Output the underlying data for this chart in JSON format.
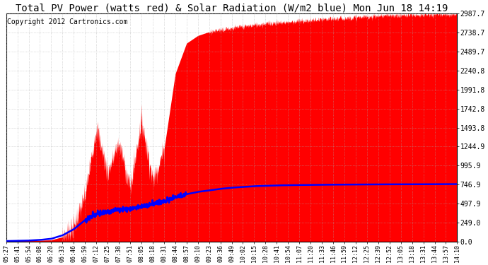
{
  "title": "Total PV Power (watts red) & Solar Radiation (W/m2 blue) Mon Jun 18 14:19",
  "copyright": "Copyright 2012 Cartronics.com",
  "ylim": [
    0.0,
    2987.7
  ],
  "yticks": [
    0.0,
    249.0,
    497.9,
    746.9,
    995.9,
    1244.9,
    1493.8,
    1742.8,
    1991.8,
    2240.8,
    2489.7,
    2738.7,
    2987.7
  ],
  "xtick_labels": [
    "05:27",
    "05:41",
    "05:54",
    "06:08",
    "06:20",
    "06:33",
    "06:46",
    "06:59",
    "07:12",
    "07:25",
    "07:38",
    "07:51",
    "08:05",
    "08:18",
    "08:31",
    "08:44",
    "08:57",
    "09:10",
    "09:23",
    "09:36",
    "09:49",
    "10:02",
    "10:15",
    "10:28",
    "10:41",
    "10:54",
    "11:07",
    "11:20",
    "11:33",
    "11:46",
    "11:59",
    "12:12",
    "12:25",
    "12:39",
    "12:52",
    "13:05",
    "13:18",
    "13:31",
    "13:44",
    "13:57",
    "14:10"
  ],
  "background_color": "#ffffff",
  "red_color": "#ff0000",
  "blue_color": "#0000ff",
  "grid_color": "#aaaaaa",
  "title_fontsize": 10,
  "copyright_fontsize": 7,
  "figwidth": 6.9,
  "figheight": 3.75,
  "dpi": 100
}
